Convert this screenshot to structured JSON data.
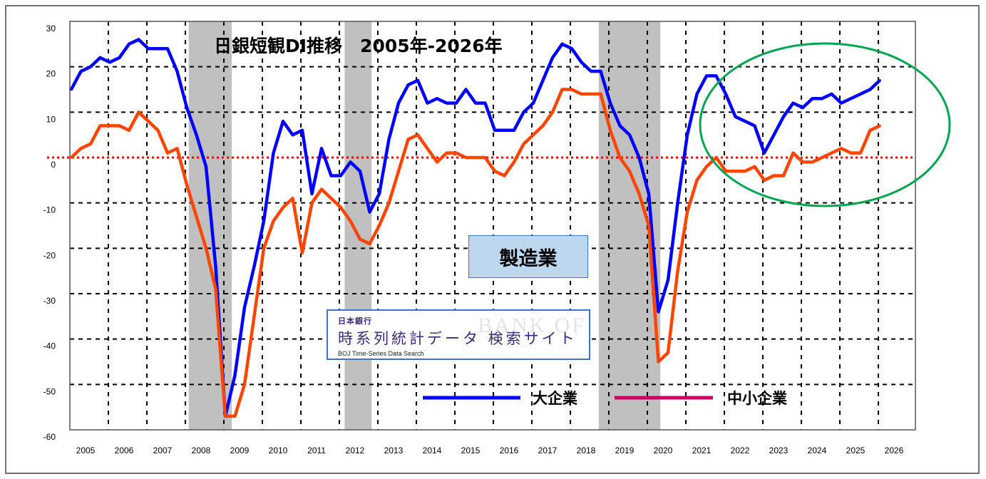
{
  "chart_data": {
    "type": "line",
    "title": "日銀短観DI推移　2005年-2026年",
    "sector_label": "製造業",
    "xlabel": "",
    "ylabel": "",
    "ylim": [
      -60,
      30
    ],
    "xlim": [
      2005,
      2027
    ],
    "yticks": [
      "30",
      "20",
      "10",
      "0",
      "-10",
      "-20",
      "-30",
      "-40",
      "-50",
      "-60"
    ],
    "xticks": [
      "2005",
      "2006",
      "2007",
      "2008",
      "2009",
      "2010",
      "2011",
      "2012",
      "2013",
      "2014",
      "2015",
      "2016",
      "2017",
      "2018",
      "2019",
      "2020",
      "2021",
      "2022",
      "2023",
      "2024",
      "2025",
      "2026"
    ],
    "x_start": 2005,
    "x_step": 0.25,
    "series": [
      {
        "name": "大企業",
        "color": "#0000ff",
        "legend_color": "#0000ff",
        "values": [
          15,
          19,
          20,
          22,
          21,
          22,
          25,
          26,
          24,
          24,
          24,
          19,
          11,
          5,
          -2,
          -24,
          -57,
          -48,
          -33,
          -24,
          -14,
          1,
          8,
          5,
          6,
          -8,
          2,
          -4,
          -4,
          -1,
          -3,
          -12,
          -8,
          4,
          12,
          16,
          17,
          12,
          13,
          12,
          12,
          15,
          12,
          12,
          6,
          6,
          6,
          10,
          12,
          17,
          22,
          25,
          24,
          21,
          19,
          19,
          12,
          7,
          5,
          0,
          -8,
          -34,
          -27,
          -10,
          5,
          14,
          18,
          18,
          14,
          9,
          8,
          7,
          1,
          5,
          9,
          12,
          11,
          13,
          13,
          14,
          12,
          13,
          14,
          15,
          17
        ]
      },
      {
        "name": "中小企業",
        "color": "#ff4500",
        "legend_color": "#cc0066",
        "values": [
          0,
          2,
          3,
          7,
          7,
          7,
          6,
          10,
          8,
          6,
          1,
          2,
          -6,
          -13,
          -20,
          -29,
          -57,
          -57,
          -50,
          -35,
          -20,
          -14,
          -11,
          -9,
          -21,
          -10,
          -7,
          -9,
          -11,
          -14,
          -18,
          -19,
          -15,
          -10,
          -3,
          4,
          5,
          2,
          -1,
          1,
          1,
          0,
          0,
          0,
          -3,
          -4,
          -1,
          3,
          5,
          7,
          10,
          15,
          15,
          14,
          14,
          14,
          6,
          0,
          -3,
          -8,
          -15,
          -45,
          -43,
          -25,
          -12,
          -5,
          -2,
          0,
          -3,
          -3,
          -3,
          -2,
          -5,
          -4,
          -4,
          1,
          -1,
          -1,
          0,
          1,
          2,
          1,
          1,
          6,
          7
        ]
      }
    ],
    "recession_bands": [
      [
        2008.05,
        2009.17
      ],
      [
        2012.1,
        2012.8
      ],
      [
        2018.7,
        2020.3
      ]
    ],
    "reference_line": {
      "value": 0,
      "color": "#ff0000",
      "style": "dotted"
    },
    "highlight": {
      "shape": "ellipse",
      "color": "#00a550",
      "covers": [
        2021.8,
        2027
      ]
    },
    "grid": true,
    "legend_placement": "bottom-right"
  },
  "logo": {
    "org": "日本銀行",
    "name": "時系列統計データ 検索サイト",
    "english": "BOJ Time-Series Data Search",
    "watermark": "BANK OF"
  }
}
